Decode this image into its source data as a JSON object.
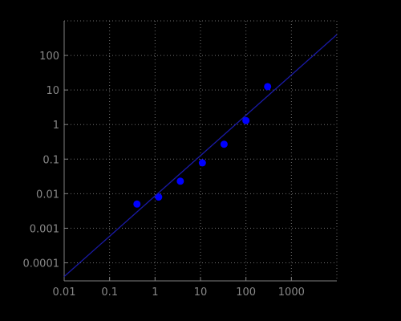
{
  "chart_data": {
    "type": "scatter",
    "title": "",
    "xlabel": "",
    "ylabel": "",
    "x_scale": "log",
    "y_scale": "log",
    "xlim": [
      0.01,
      10000
    ],
    "ylim": [
      3e-05,
      1000
    ],
    "grid": true,
    "legend": "none",
    "x_ticks": [
      0.01,
      0.1,
      1,
      10,
      100,
      1000
    ],
    "x_tick_labels": [
      "0.01",
      "0.1",
      "1",
      "10",
      "100",
      "1000"
    ],
    "y_ticks": [
      0.0001,
      0.001,
      0.01,
      0.1,
      1,
      10,
      100
    ],
    "y_tick_labels": [
      "0.0001",
      "0.001",
      "0.01",
      "0.1",
      "1",
      "10",
      "100"
    ],
    "series": [
      {
        "kind": "points",
        "x": [
          0.4,
          1.2,
          3.6,
          11,
          33,
          100,
          300
        ],
        "y": [
          0.005,
          0.008,
          0.023,
          0.078,
          0.27,
          1.3,
          12.5
        ]
      },
      {
        "kind": "line",
        "x": [
          0.01,
          10000
        ],
        "y": [
          4e-05,
          400
        ]
      }
    ],
    "colors": {
      "background": "#000000",
      "points": "#0000ff",
      "line": "#1a1aa6",
      "axis": "#808080",
      "grid": "#6e6e6e",
      "tick_label": "#888888"
    }
  }
}
